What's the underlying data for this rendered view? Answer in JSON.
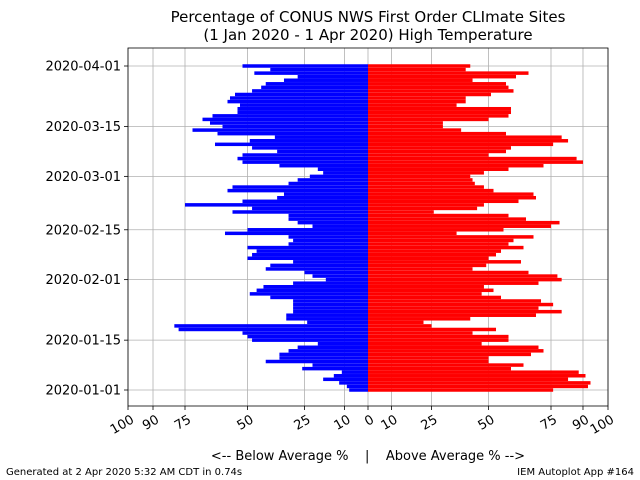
{
  "chart_data": {
    "type": "bar",
    "orientation": "horizontal-diverging",
    "title_line1": "Percentage of CONUS NWS First Order CLImate Sites",
    "title_line2": "(1 Jan 2020 - 1 Apr 2020) High Temperature",
    "xlabel": "<-- Below Average %    |    Above Average % -->",
    "footer_left": "Generated at 2 Apr 2020 5:32 AM CDT in 0.74s",
    "footer_right": "IEM Autoplot App #164",
    "x_scale": "symmetric-log",
    "xlim": [
      -100,
      100
    ],
    "x_ticks": [
      -100,
      -90,
      -75,
      -50,
      -25,
      -10,
      0,
      10,
      25,
      50,
      75,
      90,
      100
    ],
    "x_tick_labels": [
      "100",
      "90",
      "75",
      "50",
      "25",
      "10",
      "0",
      "10",
      "25",
      "50",
      "75",
      "90",
      "100"
    ],
    "y_ticks": [
      "2020-01-01",
      "2020-01-15",
      "2020-02-01",
      "2020-02-15",
      "2020-03-01",
      "2020-03-15",
      "2020-04-01"
    ],
    "grid": true,
    "series": [
      {
        "color": "#ff0000"
      },
      {
        "color": "#0000ff"
      }
    ],
    "dates": [
      "2020-01-01",
      "2020-01-02",
      "2020-01-03",
      "2020-01-04",
      "2020-01-05",
      "2020-01-06",
      "2020-01-07",
      "2020-01-08",
      "2020-01-09",
      "2020-01-10",
      "2020-01-11",
      "2020-01-12",
      "2020-01-13",
      "2020-01-14",
      "2020-01-15",
      "2020-01-16",
      "2020-01-17",
      "2020-01-18",
      "2020-01-19",
      "2020-01-20",
      "2020-01-21",
      "2020-01-22",
      "2020-01-23",
      "2020-01-24",
      "2020-01-25",
      "2020-01-26",
      "2020-01-27",
      "2020-01-28",
      "2020-01-29",
      "2020-01-30",
      "2020-01-31",
      "2020-02-01",
      "2020-02-02",
      "2020-02-03",
      "2020-02-04",
      "2020-02-05",
      "2020-02-06",
      "2020-02-07",
      "2020-02-08",
      "2020-02-09",
      "2020-02-10",
      "2020-02-11",
      "2020-02-12",
      "2020-02-13",
      "2020-02-14",
      "2020-02-15",
      "2020-02-16",
      "2020-02-17",
      "2020-02-18",
      "2020-02-19",
      "2020-02-20",
      "2020-02-21",
      "2020-02-22",
      "2020-02-23",
      "2020-02-24",
      "2020-02-25",
      "2020-02-26",
      "2020-02-27",
      "2020-02-28",
      "2020-02-29",
      "2020-03-01",
      "2020-03-02",
      "2020-03-03",
      "2020-03-04",
      "2020-03-05",
      "2020-03-06",
      "2020-03-07",
      "2020-03-08",
      "2020-03-09",
      "2020-03-10",
      "2020-03-11",
      "2020-03-12",
      "2020-03-13",
      "2020-03-14",
      "2020-03-15",
      "2020-03-16",
      "2020-03-17",
      "2020-03-18",
      "2020-03-19",
      "2020-03-20",
      "2020-03-21",
      "2020-03-22",
      "2020-03-23",
      "2020-03-24",
      "2020-03-25",
      "2020-03-26",
      "2020-03-27",
      "2020-03-28",
      "2020-03-29",
      "2020-03-30",
      "2020-03-31",
      "2020-04-01"
    ],
    "above": [
      76,
      92,
      93,
      83,
      91,
      88,
      59,
      64,
      50,
      50,
      67,
      72,
      70,
      47,
      58,
      58,
      43,
      53,
      25,
      22,
      42,
      69,
      80,
      70,
      76,
      71,
      55,
      47,
      52,
      48,
      70,
      80,
      78,
      66,
      43,
      49,
      63,
      50,
      53,
      55,
      64,
      58,
      60,
      68,
      36,
      56,
      75,
      79,
      65,
      58,
      26,
      45,
      48,
      62,
      69,
      68,
      52,
      48,
      44,
      43,
      42,
      48,
      58,
      72,
      90,
      87,
      50,
      57,
      59,
      76,
      83,
      80,
      57,
      38,
      30,
      30,
      50,
      58,
      59,
      59,
      36,
      40,
      40,
      51,
      60,
      58,
      57,
      43,
      61,
      66,
      40,
      42
    ],
    "below": [
      8,
      9,
      12,
      18,
      14,
      11,
      26,
      22,
      42,
      36,
      36,
      32,
      28,
      20,
      48,
      50,
      52,
      78,
      80,
      24,
      33,
      33,
      30,
      30,
      30,
      30,
      40,
      49,
      46,
      43,
      30,
      17,
      22,
      25,
      42,
      40,
      30,
      50,
      48,
      46,
      50,
      32,
      30,
      32,
      59,
      50,
      22,
      28,
      32,
      32,
      56,
      48,
      75,
      52,
      37,
      34,
      58,
      56,
      32,
      28,
      23,
      18,
      20,
      36,
      52,
      54,
      52,
      37,
      48,
      63,
      49,
      38,
      62,
      72,
      60,
      65,
      68,
      64,
      54,
      54,
      53,
      58,
      57,
      55,
      48,
      44,
      42,
      34,
      28,
      47,
      40,
      52
    ],
    "ylabel": ""
  }
}
